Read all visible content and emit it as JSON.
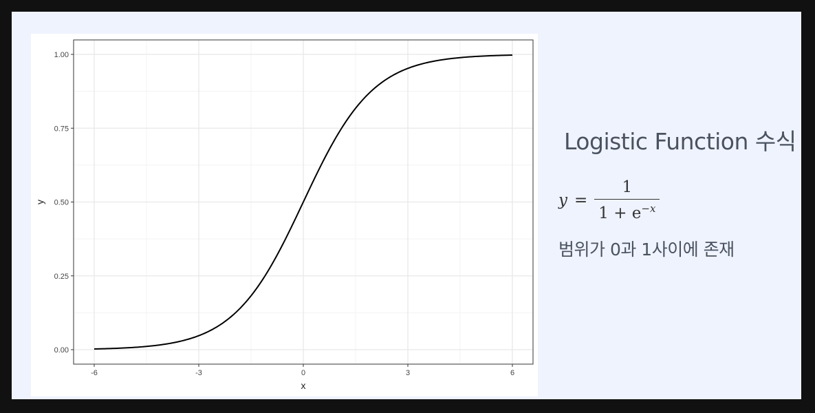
{
  "chart_data": {
    "type": "line",
    "title": "",
    "xlabel": "x",
    "ylabel": "y",
    "xlim": [
      -6,
      6
    ],
    "ylim": [
      0,
      1
    ],
    "x_ticks": [
      -6,
      -3,
      0,
      3,
      6
    ],
    "x_tick_labels": [
      "-6",
      "-3",
      "0",
      "3",
      "6"
    ],
    "y_ticks": [
      0,
      0.25,
      0.5,
      0.75,
      1
    ],
    "y_tick_labels": [
      "0.00",
      "0.25",
      "0.50",
      "0.75",
      "1.00"
    ],
    "grid": true,
    "series": [
      {
        "x": [
          -6,
          -5,
          -4,
          -3,
          -2,
          -1,
          0,
          1,
          2,
          3,
          4,
          5,
          6
        ],
        "y": [
          0.0025,
          0.0067,
          0.018,
          0.047,
          0.119,
          0.269,
          0.5,
          0.731,
          0.881,
          0.953,
          0.982,
          0.993,
          0.9975
        ],
        "color": "#000000"
      }
    ]
  },
  "info": {
    "title": "Logistic Function 수식",
    "formula": {
      "lhs": "y",
      "equals": "=",
      "numerator": "1",
      "denominator_base": "1 + e",
      "denominator_exponent": "−x"
    },
    "range_text": "범위가 0과 1사이에 존재"
  }
}
